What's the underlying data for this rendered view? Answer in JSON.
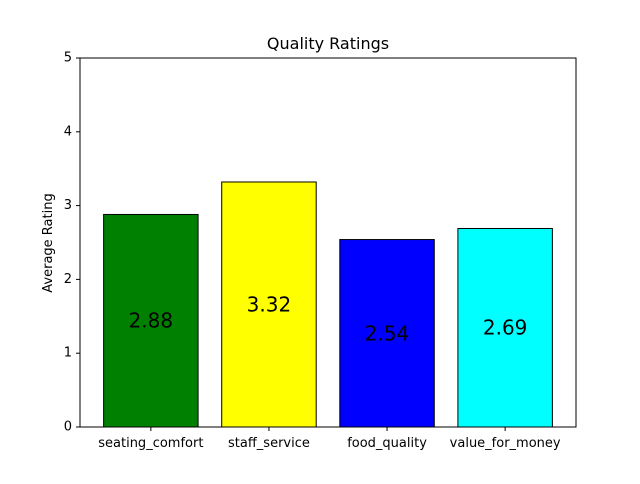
{
  "chart_data": {
    "type": "bar",
    "title": "Quality Ratings",
    "xlabel": "",
    "ylabel": "Average Rating",
    "categories": [
      "seating_comfort",
      "staff_service",
      "food_quality",
      "value_for_money"
    ],
    "values": [
      2.88,
      3.32,
      2.54,
      2.69
    ],
    "value_labels": [
      "2.88",
      "3.32",
      "2.54",
      "2.69"
    ],
    "bar_colors": [
      "#008000",
      "#ffff00",
      "#0000ff",
      "#00ffff"
    ],
    "edge_color": "#000000",
    "ylim": [
      0,
      5
    ],
    "yticks": [
      0,
      1,
      2,
      3,
      4,
      5
    ],
    "grid": false,
    "legend": "none"
  }
}
